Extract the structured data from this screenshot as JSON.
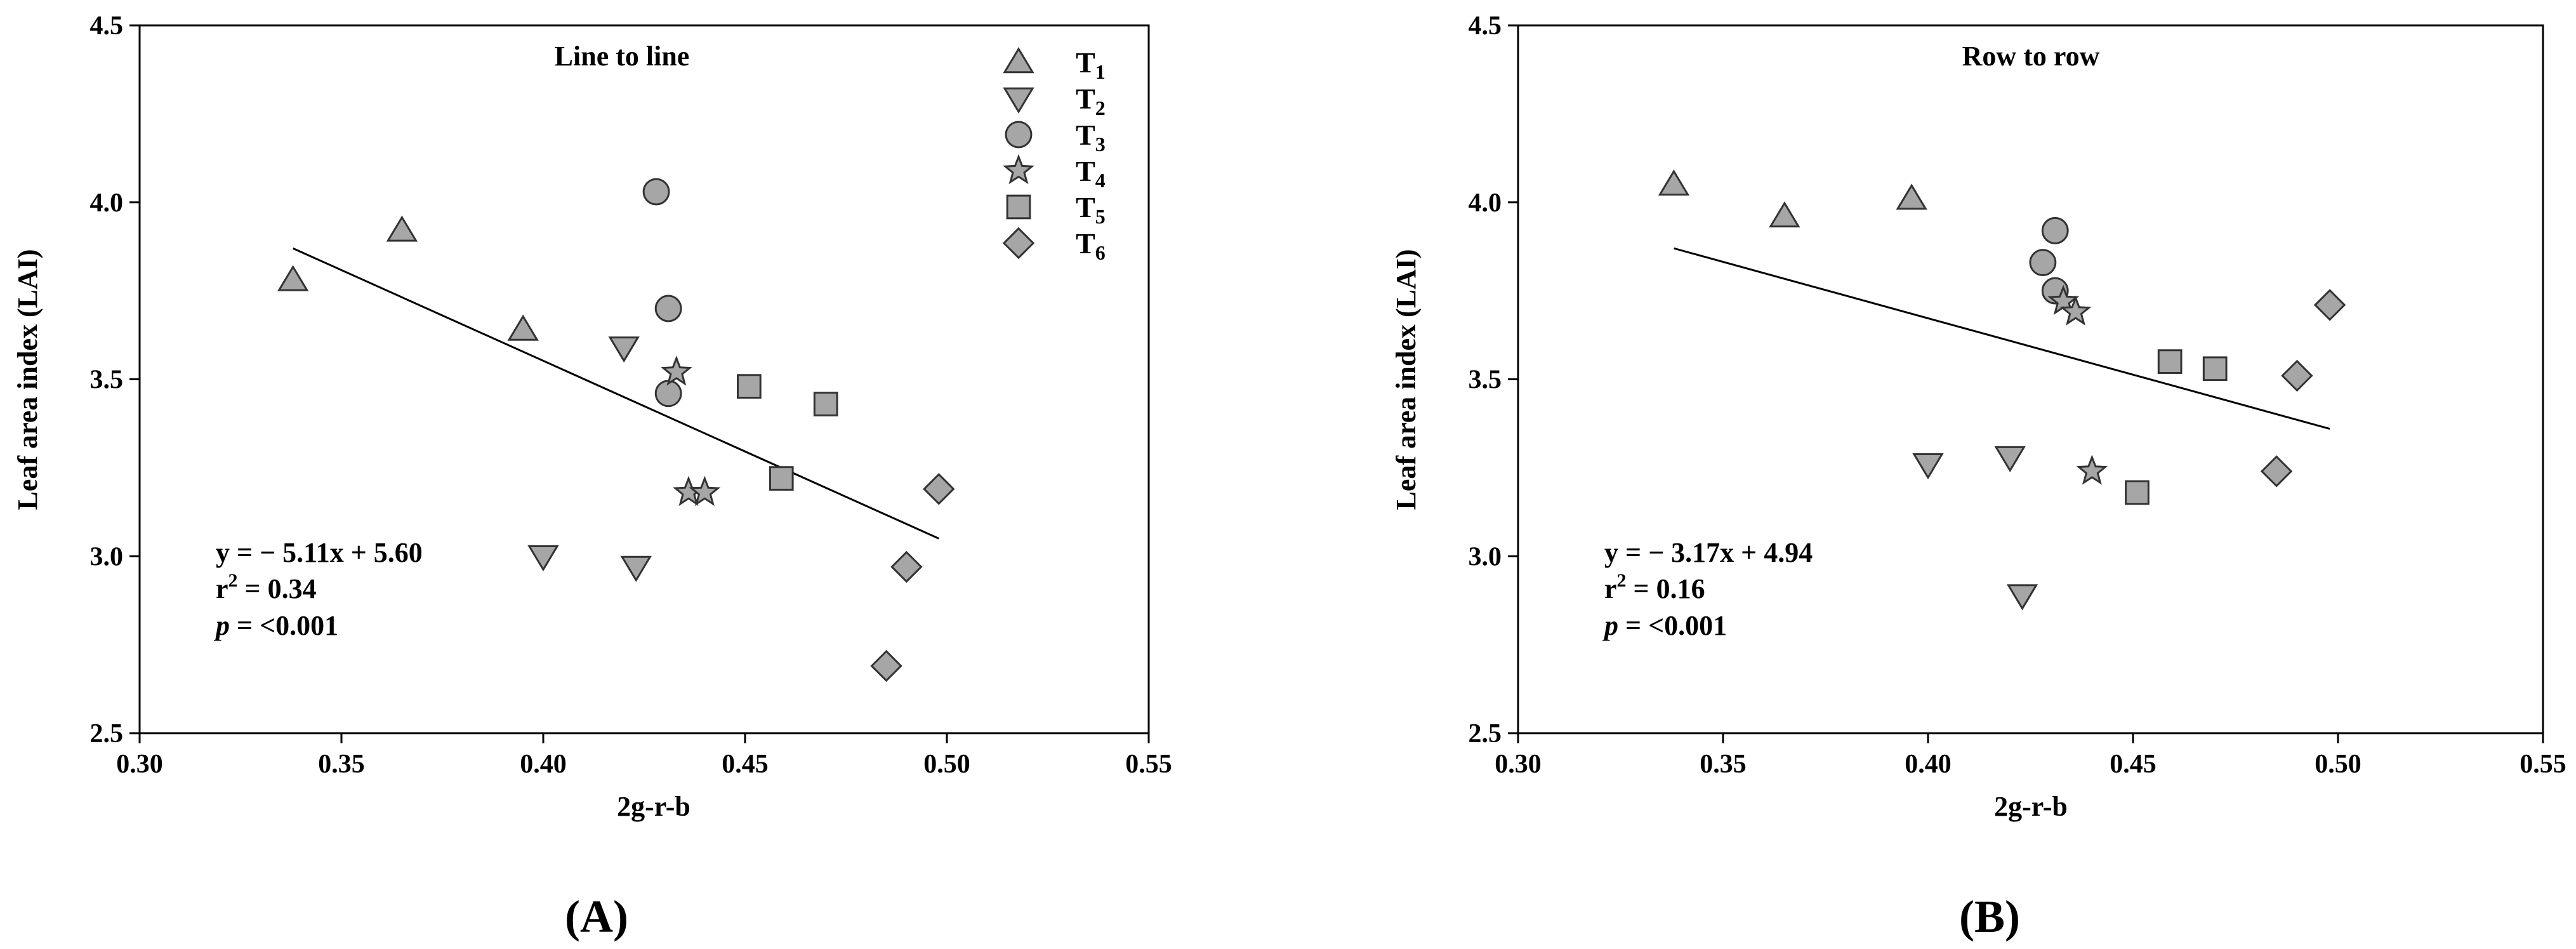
{
  "chart_data": [
    {
      "type": "scatter",
      "panel_label": "(A)",
      "title": "Line to line",
      "xlabel": "2g-r-b",
      "ylabel": "Leaf area index (LAI)",
      "xlim": [
        0.3,
        0.55
      ],
      "ylim": [
        2.5,
        4.5
      ],
      "xticks": [
        "0.30",
        "0.35",
        "0.40",
        "0.45",
        "0.50",
        "0.55"
      ],
      "yticks": [
        "2.5",
        "3.0",
        "3.5",
        "4.0",
        "4.5"
      ],
      "grid": false,
      "legend_position": "top-right",
      "series": [
        {
          "name": "T1",
          "marker": "triangle-up",
          "points": [
            [
              0.338,
              3.78
            ],
            [
              0.365,
              3.92
            ],
            [
              0.395,
              3.64
            ]
          ]
        },
        {
          "name": "T2",
          "marker": "triangle-down",
          "points": [
            [
              0.42,
              3.59
            ],
            [
              0.4,
              3.0
            ],
            [
              0.423,
              2.97
            ]
          ]
        },
        {
          "name": "T3",
          "marker": "circle",
          "points": [
            [
              0.428,
              4.03
            ],
            [
              0.431,
              3.7
            ],
            [
              0.431,
              3.46
            ]
          ]
        },
        {
          "name": "T4",
          "marker": "star",
          "points": [
            [
              0.433,
              3.52
            ],
            [
              0.436,
              3.18
            ],
            [
              0.44,
              3.18
            ]
          ]
        },
        {
          "name": "T5",
          "marker": "square",
          "points": [
            [
              0.451,
              3.48
            ],
            [
              0.47,
              3.43
            ],
            [
              0.459,
              3.22
            ]
          ]
        },
        {
          "name": "T6",
          "marker": "diamond",
          "points": [
            [
              0.498,
              3.19
            ],
            [
              0.49,
              2.97
            ],
            [
              0.485,
              2.69
            ]
          ]
        }
      ],
      "fit": {
        "x": [
          0.338,
          0.498
        ],
        "y": [
          3.87,
          3.05
        ]
      },
      "annotations": {
        "equation": "y = − 5.11x + 5.60",
        "r2_label": "r",
        "r2_sup": "2",
        "r2_value": " = 0.34",
        "p_label": "p",
        "p_value": " = <0.001"
      }
    },
    {
      "type": "scatter",
      "panel_label": "(B)",
      "title": "Row to row",
      "xlabel": "2g-r-b",
      "ylabel": "Leaf area index (LAI)",
      "xlim": [
        0.3,
        0.55
      ],
      "ylim": [
        2.5,
        4.5
      ],
      "xticks": [
        "0.30",
        "0.35",
        "0.40",
        "0.45",
        "0.50",
        "0.55"
      ],
      "yticks": [
        "2.5",
        "3.0",
        "3.5",
        "4.0",
        "4.5"
      ],
      "grid": false,
      "series": [
        {
          "name": "T1",
          "marker": "triangle-up",
          "points": [
            [
              0.338,
              4.05
            ],
            [
              0.365,
              3.96
            ],
            [
              0.396,
              4.01
            ]
          ]
        },
        {
          "name": "T2",
          "marker": "triangle-down",
          "points": [
            [
              0.4,
              3.26
            ],
            [
              0.42,
              3.28
            ],
            [
              0.423,
              2.89
            ]
          ]
        },
        {
          "name": "T3",
          "marker": "circle",
          "points": [
            [
              0.431,
              3.92
            ],
            [
              0.428,
              3.83
            ],
            [
              0.431,
              3.75
            ]
          ]
        },
        {
          "name": "T4",
          "marker": "star",
          "points": [
            [
              0.433,
              3.72
            ],
            [
              0.436,
              3.69
            ],
            [
              0.44,
              3.24
            ]
          ]
        },
        {
          "name": "T5",
          "marker": "square",
          "points": [
            [
              0.459,
              3.55
            ],
            [
              0.47,
              3.53
            ],
            [
              0.451,
              3.18
            ]
          ]
        },
        {
          "name": "T6",
          "marker": "diamond",
          "points": [
            [
              0.498,
              3.71
            ],
            [
              0.49,
              3.51
            ],
            [
              0.485,
              3.24
            ]
          ]
        }
      ],
      "fit": {
        "x": [
          0.338,
          0.498
        ],
        "y": [
          3.87,
          3.36
        ]
      },
      "annotations": {
        "equation": "y = − 3.17x + 4.94",
        "r2_label": "r",
        "r2_sup": "2",
        "r2_value": " = 0.16",
        "p_label": "p",
        "p_value": " = <0.001"
      }
    }
  ],
  "legend": {
    "entries": [
      {
        "label": "T",
        "sub": "1",
        "marker": "triangle-up"
      },
      {
        "label": "T",
        "sub": "2",
        "marker": "triangle-down"
      },
      {
        "label": "T",
        "sub": "3",
        "marker": "circle"
      },
      {
        "label": "T",
        "sub": "4",
        "marker": "star"
      },
      {
        "label": "T",
        "sub": "5",
        "marker": "square"
      },
      {
        "label": "T",
        "sub": "6",
        "marker": "diamond"
      }
    ]
  },
  "style": {
    "marker_fill": "#a6a6a6",
    "marker_stroke": "#333333",
    "axis_color": "#000000"
  }
}
